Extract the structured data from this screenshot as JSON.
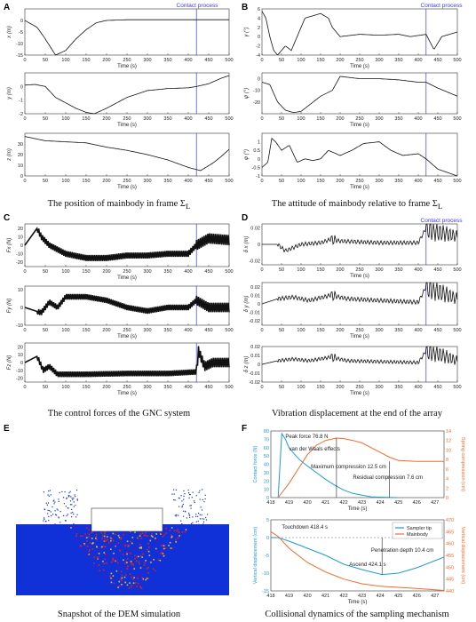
{
  "panel_letters": {
    "a": "A",
    "b": "B",
    "c": "C",
    "d": "D",
    "e": "E",
    "f": "F"
  },
  "captions": {
    "a": "The position of mainbody in frame Σ",
    "b": "The attitude of mainbody relative to frame Σ",
    "c": "The control forces of the GNC system",
    "d": "Vibration displacement at the end of the array",
    "e": "Snapshot of the DEM simulation",
    "f": "Collisional dynamics of the sampling mechanism",
    "frame_sub": "L"
  },
  "contact_label": "Contact process",
  "contact_time": 420,
  "x_label": "Time (s)",
  "colors": {
    "line": "#111111",
    "contact": "#3a3aff",
    "blue": "#1f9bd4",
    "orange": "#f26b2b",
    "dem_blue": "#1030d8"
  },
  "chart_data": [
    {
      "id": "A1",
      "type": "line",
      "ylabel": "x (m)",
      "xlim": [
        0,
        500
      ],
      "ylim": [
        -15,
        5
      ],
      "yticks": [
        -15,
        -10,
        -5,
        0
      ],
      "x": [
        0,
        30,
        50,
        75,
        100,
        125,
        150,
        175,
        200,
        250,
        300,
        350,
        400,
        420,
        450,
        480,
        500
      ],
      "y": [
        0,
        -3,
        -8,
        -15,
        -13,
        -8,
        -4,
        -1,
        0,
        0.3,
        0.3,
        0.3,
        0.3,
        0.3,
        0.3,
        0.3,
        0.3
      ]
    },
    {
      "id": "A2",
      "type": "line",
      "ylabel": "y (m)",
      "xlim": [
        0,
        500
      ],
      "ylim": [
        -2,
        1
      ],
      "yticks": [
        -2,
        -1,
        0
      ],
      "x": [
        0,
        25,
        50,
        75,
        100,
        125,
        150,
        170,
        200,
        250,
        300,
        350,
        400,
        420,
        450,
        480,
        500
      ],
      "y": [
        0.1,
        0.15,
        0,
        -0.8,
        -1.2,
        -1.6,
        -1.9,
        -2,
        -1.6,
        -0.8,
        -0.3,
        -0.15,
        -0.1,
        0,
        0.2,
        0.6,
        0.8
      ]
    },
    {
      "id": "A3",
      "type": "line",
      "ylabel": "z (m)",
      "xlim": [
        0,
        500
      ],
      "ylim": [
        0,
        40
      ],
      "yticks": [
        0,
        10,
        20,
        30
      ],
      "x": [
        0,
        50,
        100,
        150,
        200,
        250,
        300,
        350,
        400,
        430,
        460,
        480,
        500
      ],
      "y": [
        37,
        33,
        32,
        31,
        27,
        24,
        20,
        15,
        8,
        5,
        12,
        18,
        25
      ]
    },
    {
      "id": "B1",
      "type": "line",
      "ylabel": "γ (°)",
      "xlim": [
        0,
        500
      ],
      "ylim": [
        -4,
        6
      ],
      "yticks": [
        -4,
        -2,
        0,
        2,
        4,
        6
      ],
      "x": [
        0,
        10,
        20,
        30,
        40,
        60,
        75,
        90,
        110,
        150,
        170,
        180,
        200,
        250,
        300,
        350,
        380,
        420,
        440,
        460,
        500
      ],
      "y": [
        5.5,
        4,
        0,
        -3,
        -4,
        -2,
        -3,
        0,
        4,
        5,
        4,
        2,
        0,
        0.5,
        0.3,
        0.5,
        0,
        0.5,
        -2.8,
        0,
        1
      ]
    },
    {
      "id": "B2",
      "type": "line",
      "ylabel": "ψ (°)",
      "xlim": [
        0,
        500
      ],
      "ylim": [
        -30,
        5
      ],
      "yticks": [
        -20,
        -10,
        0
      ],
      "x": [
        0,
        20,
        40,
        60,
        80,
        100,
        150,
        180,
        200,
        250,
        300,
        350,
        400,
        420,
        450,
        500
      ],
      "y": [
        -3,
        -5,
        -20,
        -27,
        -29,
        -28,
        -15,
        -10,
        2,
        0,
        0,
        -1,
        -3,
        -3,
        -8,
        -15
      ]
    },
    {
      "id": "B3",
      "type": "line",
      "ylabel": "φ (°)",
      "xlim": [
        0,
        500
      ],
      "ylim": [
        -1,
        1.5
      ],
      "yticks": [
        -1,
        -0.5,
        0,
        0.5,
        1
      ],
      "x": [
        0,
        15,
        25,
        35,
        50,
        70,
        90,
        110,
        130,
        150,
        170,
        200,
        230,
        260,
        300,
        330,
        360,
        400,
        420,
        450,
        500
      ],
      "y": [
        -0.5,
        -0.2,
        1.2,
        1,
        0.5,
        0.8,
        -0.2,
        0,
        -0.1,
        0,
        0.5,
        0.2,
        0.5,
        0.9,
        1,
        0.5,
        0.2,
        0.3,
        0,
        -0.6,
        -1
      ]
    },
    {
      "id": "C1",
      "type": "line",
      "ylabel": "Fx (N)",
      "xlim": [
        0,
        500
      ],
      "ylim": [
        -25,
        25
      ],
      "yticks": [
        -20,
        -10,
        0,
        10,
        20
      ],
      "x": [
        0,
        30,
        40,
        60,
        80,
        100,
        150,
        200,
        250,
        300,
        350,
        400,
        420,
        450,
        500
      ],
      "y": [
        0,
        20,
        10,
        0,
        -5,
        -10,
        -15,
        -15,
        -12,
        -12,
        -10,
        -10,
        0,
        8,
        6
      ]
    },
    {
      "id": "C2",
      "type": "line",
      "ylabel": "Fy (N)",
      "xlim": [
        0,
        500
      ],
      "ylim": [
        -10,
        12
      ],
      "yticks": [
        -10,
        0,
        10
      ],
      "x": [
        0,
        40,
        60,
        80,
        100,
        150,
        200,
        250,
        300,
        350,
        400,
        420,
        450,
        500
      ],
      "y": [
        0,
        -3,
        3,
        0,
        6,
        6,
        4,
        0,
        -2,
        0,
        0,
        4,
        0,
        0
      ]
    },
    {
      "id": "C3",
      "type": "line",
      "ylabel": "Fz (N)",
      "xlim": [
        0,
        500
      ],
      "ylim": [
        -25,
        25
      ],
      "yticks": [
        -20,
        -10,
        0,
        10,
        20
      ],
      "x": [
        0,
        30,
        45,
        60,
        80,
        150,
        250,
        350,
        420,
        425,
        440,
        460,
        480,
        500
      ],
      "y": [
        0,
        8,
        -10,
        -5,
        -15,
        -15,
        -14,
        -14,
        -12,
        15,
        -5,
        0,
        0,
        0
      ]
    },
    {
      "id": "D1",
      "type": "line",
      "ylabel": "δ x (m)",
      "xlim": [
        0,
        500
      ],
      "ylim": [
        -0.025,
        0.025
      ],
      "yticks": [
        -0.02,
        0,
        0.02
      ],
      "x": [
        0,
        40,
        60,
        80,
        100,
        150,
        175,
        200,
        250,
        300,
        350,
        400,
        420,
        450,
        500
      ],
      "y": [
        0,
        0,
        -0.008,
        -0.004,
        0,
        0.002,
        0.006,
        0.004,
        0.003,
        0.002,
        0.002,
        0.002,
        0.02,
        0.015,
        0.01
      ]
    },
    {
      "id": "D2",
      "type": "line",
      "ylabel": "δ y (m)",
      "xlim": [
        0,
        500
      ],
      "ylim": [
        -0.025,
        0.025
      ],
      "yticks": [
        -0.02,
        -0.01,
        0,
        0.01,
        0.02
      ],
      "x": [
        0,
        40,
        80,
        120,
        175,
        220,
        300,
        400,
        420,
        450,
        500
      ],
      "y": [
        0,
        0.006,
        0.008,
        0.004,
        0.01,
        0.006,
        0.004,
        0.002,
        0.02,
        0.015,
        0.006
      ]
    },
    {
      "id": "D3",
      "type": "line",
      "ylabel": "δ z (m)",
      "xlim": [
        0,
        500
      ],
      "ylim": [
        -0.02,
        0.02
      ],
      "yticks": [
        -0.02,
        -0.01,
        0,
        0.01,
        0.02
      ],
      "x": [
        0,
        40,
        80,
        120,
        175,
        220,
        300,
        400,
        420,
        450,
        500
      ],
      "y": [
        0,
        0.004,
        0.006,
        0.004,
        0.008,
        0.004,
        0.003,
        0.002,
        0.015,
        0.012,
        0.004
      ]
    },
    {
      "id": "F1",
      "type": "line",
      "ylabel": "Contact force (N)",
      "ylabel2": "Spring compression (cm)",
      "xlim": [
        418,
        427.5
      ],
      "ylim": [
        0,
        80
      ],
      "ylim2": [
        0,
        14
      ],
      "xticks": [
        418,
        419,
        420,
        421,
        422,
        423,
        424,
        425,
        426,
        427
      ],
      "yticks": [
        0,
        10,
        20,
        30,
        40,
        50,
        60,
        70,
        80
      ],
      "yticks2": [
        0,
        2,
        4,
        6,
        8,
        10,
        12,
        14
      ],
      "series": [
        {
          "name": "force",
          "x": [
            418.4,
            418.6,
            418.8,
            419,
            419.3,
            419.6,
            420,
            420.5,
            421,
            421.5,
            422,
            422.5,
            423,
            423.5,
            424,
            424.5,
            425
          ],
          "y": [
            0,
            76.8,
            70,
            60,
            52,
            45,
            38,
            30,
            22,
            15,
            9,
            5,
            3,
            1,
            0.5,
            0.2,
            0
          ]
        },
        {
          "name": "compression",
          "x": [
            418.4,
            419,
            419.5,
            420,
            420.5,
            421,
            421.6,
            422,
            422.5,
            423,
            423.5,
            424,
            424.5,
            425,
            426,
            427,
            427.5
          ],
          "y": [
            0,
            3,
            6,
            9,
            11,
            12,
            12.5,
            12.4,
            12,
            11.5,
            10.5,
            9.5,
            8.5,
            7.8,
            7.6,
            7.6,
            7.6
          ]
        }
      ],
      "annotations": [
        "Peak force 76.8 N",
        "van der Waals effects",
        "Maximum compression 12.5 cm",
        "Residual compression  7.6 cm"
      ]
    },
    {
      "id": "F2",
      "type": "line",
      "ylabel": "Vertical displacement (cm)",
      "ylabel2": "Vertical displacement (cm)",
      "xlim": [
        418,
        427.5
      ],
      "ylim": [
        -15,
        5
      ],
      "ylim2": [
        440,
        470
      ],
      "xticks": [
        418,
        419,
        420,
        421,
        422,
        423,
        424,
        425,
        426,
        427
      ],
      "yticks": [
        -15,
        -10,
        -5,
        0,
        5
      ],
      "yticks2": [
        440,
        445,
        450,
        455,
        460,
        465,
        470
      ],
      "series": [
        {
          "name": "Sampler tip",
          "x": [
            418,
            418.4,
            419,
            420,
            421,
            422,
            423,
            424.1,
            425,
            426,
            427,
            427.5
          ],
          "y": [
            0,
            0,
            -1,
            -3,
            -5,
            -7.5,
            -9,
            -10.4,
            -10,
            -8.5,
            -6.5,
            -5.5
          ]
        },
        {
          "name": "Mainbody",
          "x": [
            418,
            418.4,
            419,
            420,
            421,
            422,
            423,
            424,
            425,
            426,
            427,
            427.5
          ],
          "y": [
            465,
            463,
            458,
            452,
            448,
            445,
            443,
            442,
            441.5,
            441,
            440.5,
            440.2
          ]
        }
      ],
      "annotations": [
        "Touchdown  418.4 s",
        "Penetration depth  10.4 cm",
        "Ascend 424.1 s"
      ]
    }
  ]
}
